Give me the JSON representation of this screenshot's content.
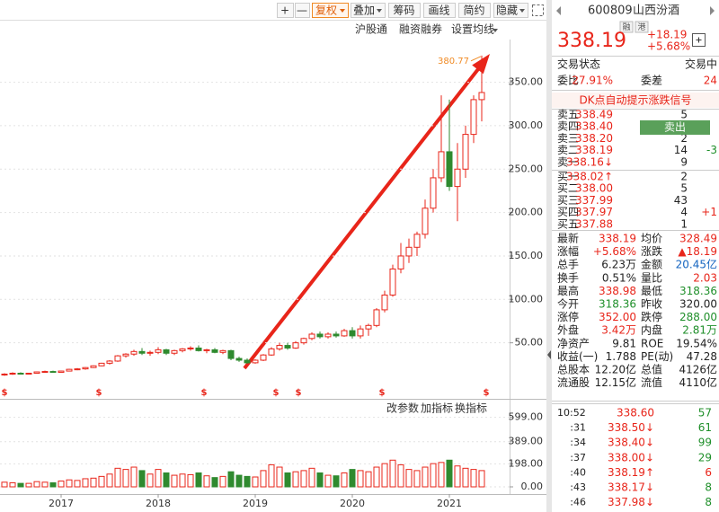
{
  "toolbar": [
    "+",
    "—",
    "复权",
    "叠加",
    "筹码",
    "画线",
    "简约",
    "隐藏"
  ],
  "chart_links": [
    "沪股通",
    "融资融券",
    "设置均线"
  ],
  "indicator_tools": [
    "改参数",
    "加指标",
    "换指标"
  ],
  "dividend_marks": [
    "$",
    "$",
    "$",
    "$",
    "$",
    "$",
    "$"
  ],
  "chart_data": {
    "type": "candlestick",
    "categories": [
      null,
      null,
      null,
      null,
      null,
      null,
      null,
      "2017",
      null,
      null,
      null,
      null,
      null,
      null,
      null,
      null,
      null,
      null,
      null,
      "2018",
      null,
      null,
      null,
      null,
      null,
      null,
      null,
      null,
      null,
      null,
      null,
      "2019",
      null,
      null,
      null,
      null,
      null,
      null,
      null,
      null,
      null,
      null,
      null,
      "2020",
      null,
      null,
      null,
      null,
      null,
      null,
      null,
      null,
      null,
      null,
      null,
      "2021",
      null,
      null,
      null,
      null
    ],
    "open": [
      13,
      14,
      15,
      14.5,
      15,
      16.5,
      17,
      16,
      17.5,
      19.5,
      20,
      21.5,
      23.5,
      26.5,
      29,
      35,
      37,
      40,
      38,
      39,
      42,
      38,
      41,
      43,
      44,
      41,
      42,
      39,
      41,
      32,
      30,
      27,
      30,
      36,
      43,
      47,
      44,
      50,
      55,
      60,
      57,
      60,
      58,
      64,
      58,
      66,
      70,
      88,
      105,
      135,
      150,
      160,
      175,
      205,
      240,
      270,
      230,
      250,
      290,
      330
    ],
    "high": [
      15,
      16,
      16,
      15.5,
      17,
      18,
      18,
      18,
      20,
      21,
      22,
      24,
      27,
      30,
      36,
      38,
      42,
      44,
      41,
      45,
      43,
      42,
      44,
      46,
      47,
      43,
      44,
      42,
      42,
      34,
      32,
      31,
      37,
      45,
      50,
      50,
      52,
      56,
      62,
      63,
      62,
      63,
      66,
      68,
      70,
      72,
      90,
      110,
      140,
      165,
      170,
      178,
      215,
      250,
      335,
      330,
      280,
      300,
      335,
      380.77
    ],
    "low": [
      12,
      13,
      14,
      13.5,
      14.5,
      16,
      15.5,
      15.8,
      17,
      18.5,
      19,
      21,
      23,
      25,
      28,
      33,
      35,
      36,
      35,
      37,
      36,
      36,
      39,
      41,
      40,
      38,
      38,
      37,
      30,
      28,
      26,
      26,
      29,
      35,
      41,
      42,
      43,
      48,
      53,
      55,
      55,
      56,
      57,
      55,
      55,
      58,
      68,
      85,
      103,
      130,
      142,
      150,
      170,
      200,
      235,
      225,
      190,
      240,
      280,
      305
    ],
    "close": [
      14,
      15,
      14.5,
      15,
      16.5,
      17,
      16,
      17.5,
      19.5,
      20,
      21.5,
      23.5,
      26.5,
      29,
      35,
      37,
      40,
      38,
      39,
      42,
      38,
      41,
      43,
      44,
      41,
      42,
      39,
      41,
      32,
      30,
      27,
      30,
      36,
      43,
      47,
      44,
      50,
      55,
      60,
      57,
      60,
      58,
      64,
      58,
      66,
      70,
      88,
      105,
      135,
      150,
      160,
      175,
      205,
      240,
      270,
      230,
      250,
      290,
      330,
      338.19
    ],
    "volume": [
      40,
      35,
      30,
      30,
      45,
      40,
      35,
      50,
      60,
      55,
      70,
      75,
      90,
      110,
      160,
      150,
      170,
      140,
      110,
      150,
      120,
      100,
      110,
      105,
      120,
      95,
      80,
      90,
      130,
      100,
      90,
      85,
      140,
      190,
      170,
      120,
      130,
      140,
      160,
      120,
      100,
      95,
      120,
      150,
      140,
      130,
      170,
      200,
      230,
      190,
      150,
      140,
      170,
      200,
      210,
      230,
      180,
      160,
      150,
      140
    ],
    "up_color": "#e8251a",
    "down_color": "#2f8a2f",
    "high_label": "380.77",
    "ylim": [
      0,
      393
    ],
    "yticks": [
      {
        "value": 50,
        "label": "50.00"
      },
      {
        "value": 100,
        "label": "100.00"
      },
      {
        "value": 150,
        "label": "150.00"
      },
      {
        "value": 200,
        "label": "200.00"
      },
      {
        "value": 250,
        "label": "250.00"
      },
      {
        "value": 300,
        "label": "300.00"
      },
      {
        "value": 350,
        "label": "350.00"
      }
    ],
    "volume_ylim": [
      0,
      650
    ],
    "volume_yticks": [
      {
        "value": 0,
        "label": "0.00"
      },
      {
        "value": 198,
        "label": "198.00"
      },
      {
        "value": 389,
        "label": "389.00"
      },
      {
        "value": 599,
        "label": "599.00"
      }
    ],
    "grid": true
  },
  "quote": {
    "code": "600809",
    "name": "山西汾酒",
    "badges": [
      "融",
      "港"
    ],
    "price": "338.19",
    "change": "+18.19",
    "change_pct": "+5.68%",
    "status_label": "交易状态",
    "status": "交易中",
    "ratio": [
      "委比",
      "27.91%",
      "委差",
      "24"
    ],
    "signal_link": "DK点自动提示涨跌信号",
    "sell_button": "卖出",
    "asks": [
      [
        "卖五",
        "338.49",
        "5"
      ],
      [
        "卖四",
        "338.40"
      ],
      [
        "卖三",
        "338.20",
        "2"
      ],
      [
        "卖二",
        "338.19",
        "14",
        "-3"
      ],
      [
        "卖一",
        "338.16↓",
        "9"
      ]
    ],
    "bids": [
      [
        "买一",
        "338.02↑",
        "2"
      ],
      [
        "买二",
        "338.00",
        "5"
      ],
      [
        "买三",
        "337.99",
        "43"
      ],
      [
        "买四",
        "337.97",
        "4",
        "+1"
      ],
      [
        "买五",
        "337.88",
        "1"
      ]
    ],
    "stats": [
      [
        "最新",
        "338.19",
        "均价",
        "328.49"
      ],
      [
        "涨幅",
        "+5.68%",
        "涨跌",
        "▲18.19"
      ],
      [
        "总手",
        "6.23万",
        "金额",
        "20.45亿"
      ],
      [
        "换手",
        "0.51%",
        "量比",
        "2.03"
      ],
      [
        "最高",
        "338.98",
        "最低",
        "318.36"
      ],
      [
        "今开",
        "318.36",
        "昨收",
        "320.00"
      ],
      [
        "涨停",
        "352.00",
        "跌停",
        "288.00"
      ],
      [
        "外盘",
        "3.42万",
        "内盘",
        "2.81万"
      ],
      [
        "净资产",
        "9.81",
        "ROE",
        "19.54%"
      ],
      [
        "收益(一)",
        "1.788",
        "PE(动)",
        "47.28"
      ],
      [
        "总股本",
        "12.20亿",
        "总值",
        "4126亿"
      ],
      [
        "流通股",
        "12.15亿",
        "流值",
        "4110亿"
      ]
    ],
    "trades": [
      [
        "10:52",
        "338.60",
        "57"
      ],
      [
        ":31",
        "338.50↓",
        "61"
      ],
      [
        ":34",
        "338.40↓",
        "99"
      ],
      [
        ":37",
        "338.00↓",
        "29"
      ],
      [
        ":40",
        "338.19↑",
        "6"
      ],
      [
        ":43",
        "338.17↓",
        "8"
      ],
      [
        ":46",
        "337.98↓",
        "8"
      ]
    ]
  }
}
